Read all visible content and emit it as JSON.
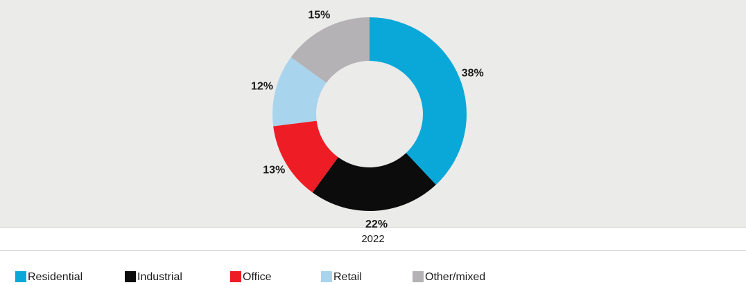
{
  "chart_data": {
    "type": "pie",
    "subtitle": "2022",
    "categories": [
      "Residential",
      "Industrial",
      "Office",
      "Retail",
      "Other/mixed"
    ],
    "values": [
      38,
      22,
      13,
      12,
      15
    ],
    "value_labels": [
      "38%",
      "22%",
      "13%",
      "12%",
      "15%"
    ],
    "colors": [
      "#0aa8d9",
      "#0c0c0d",
      "#ee1c25",
      "#a9d4ee",
      "#b4b2b5"
    ],
    "legend": "bottom-left",
    "donut": true
  }
}
